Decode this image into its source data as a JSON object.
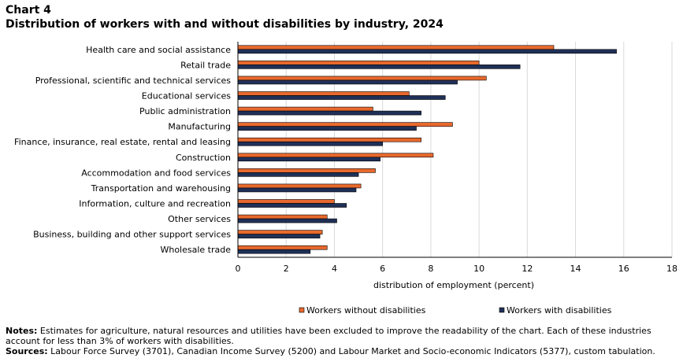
{
  "chart_label": "Chart 4",
  "chart_title": "Distribution  of workers with and without disabilities  by industry, 2024",
  "chart_data": {
    "type": "bar",
    "orientation": "horizontal",
    "categories": [
      "Health care and social assistance",
      "Retail trade",
      "Professional, scientific and technical services",
      "Educational services",
      "Public administration",
      "Manufacturing",
      "Finance, insurance, real estate, rental and leasing",
      "Construction",
      "Accommodation and food services",
      "Transportation and warehousing",
      "Information, culture and recreation",
      "Other services",
      "Business, building and other support services",
      "Wholesale trade"
    ],
    "series": [
      {
        "name": "Workers without disabilities",
        "color": "#e8692d",
        "values": [
          13.1,
          10.0,
          10.3,
          7.1,
          5.6,
          8.9,
          7.6,
          8.1,
          5.7,
          5.1,
          4.0,
          3.7,
          3.5,
          3.7
        ]
      },
      {
        "name": "Workers with disabilities",
        "color": "#1f3057",
        "values": [
          15.7,
          11.7,
          9.1,
          8.6,
          7.6,
          7.4,
          6.0,
          5.9,
          5.0,
          4.9,
          4.5,
          4.1,
          3.4,
          3.0
        ]
      }
    ],
    "xlabel": "distribution of employment (percent)",
    "xlim": [
      0,
      18
    ],
    "xticks": [
      0,
      2,
      4,
      6,
      8,
      10,
      12,
      14,
      16,
      18
    ],
    "grid": true,
    "legend_position": "bottom"
  },
  "notes_label": "Notes:",
  "notes_text": " Estimates for agriculture, natural resources and utilities have been excluded to improve the readability of the chart. Each of these industries account for less than 3% of workers with disabilities.",
  "sources_label": "Sources:",
  "sources_text": " Labour Force Survey (3701), Canadian Income Survey (5200) and Labour Market and Socio-economic Indicators (5377), custom tabulation."
}
